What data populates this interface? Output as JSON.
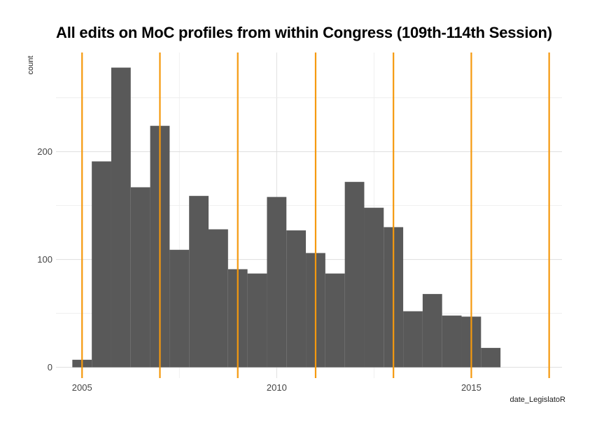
{
  "chart_data": {
    "type": "bar",
    "title": "All edits on MoC profiles from within Congress (109th-114th Session)",
    "xlabel": "date_LegislatoR",
    "ylabel": "count",
    "bins": [
      {
        "start": 2004.75,
        "end": 2005.25,
        "count": 7
      },
      {
        "start": 2005.25,
        "end": 2005.75,
        "count": 191
      },
      {
        "start": 2005.75,
        "end": 2006.25,
        "count": 278
      },
      {
        "start": 2006.25,
        "end": 2006.75,
        "count": 167
      },
      {
        "start": 2006.75,
        "end": 2007.25,
        "count": 224
      },
      {
        "start": 2007.25,
        "end": 2007.75,
        "count": 109
      },
      {
        "start": 2007.75,
        "end": 2008.25,
        "count": 159
      },
      {
        "start": 2008.25,
        "end": 2008.75,
        "count": 128
      },
      {
        "start": 2008.75,
        "end": 2009.25,
        "count": 91
      },
      {
        "start": 2009.25,
        "end": 2009.75,
        "count": 87
      },
      {
        "start": 2009.75,
        "end": 2010.25,
        "count": 158
      },
      {
        "start": 2010.25,
        "end": 2010.75,
        "count": 127
      },
      {
        "start": 2010.75,
        "end": 2011.25,
        "count": 106
      },
      {
        "start": 2011.25,
        "end": 2011.75,
        "count": 87
      },
      {
        "start": 2011.75,
        "end": 2012.25,
        "count": 172
      },
      {
        "start": 2012.25,
        "end": 2012.75,
        "count": 148
      },
      {
        "start": 2012.75,
        "end": 2013.25,
        "count": 130
      },
      {
        "start": 2013.25,
        "end": 2013.75,
        "count": 52
      },
      {
        "start": 2013.75,
        "end": 2014.25,
        "count": 68
      },
      {
        "start": 2014.25,
        "end": 2014.75,
        "count": 48
      },
      {
        "start": 2014.75,
        "end": 2015.25,
        "count": 47
      },
      {
        "start": 2015.25,
        "end": 2015.75,
        "count": 18
      }
    ],
    "session_start_lines": [
      2005.0,
      2007.0,
      2009.0,
      2011.0,
      2013.0,
      2015.0,
      2017.0
    ],
    "x_ticks": [
      "2005",
      "2010",
      "2015"
    ],
    "y_ticks": [
      0,
      100,
      200
    ],
    "xlim": [
      2004.33,
      2017.33
    ],
    "ylim": [
      -10,
      292
    ],
    "grid": true,
    "colors": {
      "bar": "#595959",
      "session_line": "#f5990e",
      "grid_major": "#dedede",
      "grid_minor": "#ececec"
    }
  }
}
